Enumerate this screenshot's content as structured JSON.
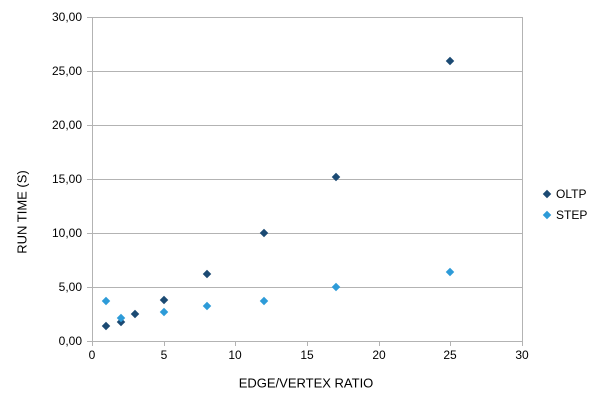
{
  "chart_data": {
    "type": "scatter",
    "title": "",
    "xlabel": "EDGE/VERTEX RATIO",
    "ylabel": "RUN TIME (S)",
    "xlim": [
      0,
      30
    ],
    "ylim": [
      0,
      30
    ],
    "x_tick_values": [
      0,
      5,
      10,
      15,
      20,
      25,
      30
    ],
    "x_tick_labels": [
      "0",
      "5",
      "10",
      "15",
      "20",
      "25",
      "30"
    ],
    "y_tick_values": [
      0,
      5,
      10,
      15,
      20,
      25,
      30
    ],
    "y_tick_labels": [
      "0,00",
      "5,00",
      "10,00",
      "15,00",
      "20,00",
      "25,00",
      "30,00"
    ],
    "grid": "horizontal-only",
    "legend_position": "right",
    "series": [
      {
        "name": "OLTP",
        "marker": "diamond",
        "color": "#1b4a73",
        "points": [
          [
            1,
            1.4
          ],
          [
            2,
            1.8
          ],
          [
            3,
            2.5
          ],
          [
            5,
            3.8
          ],
          [
            8,
            6.2
          ],
          [
            12,
            10.0
          ],
          [
            17,
            15.2
          ],
          [
            25,
            25.9
          ]
        ]
      },
      {
        "name": "STEP",
        "marker": "diamond",
        "color": "#2d9bd8",
        "points": [
          [
            1,
            3.7
          ],
          [
            2,
            2.1
          ],
          [
            5,
            2.7
          ],
          [
            8,
            3.2
          ],
          [
            12,
            3.7
          ],
          [
            17,
            5.0
          ],
          [
            25,
            6.4
          ]
        ]
      }
    ],
    "colors": {
      "grid": "#b3b3b3",
      "axis": "#b3b3b3",
      "text": "#000000",
      "background": "#ffffff"
    }
  }
}
